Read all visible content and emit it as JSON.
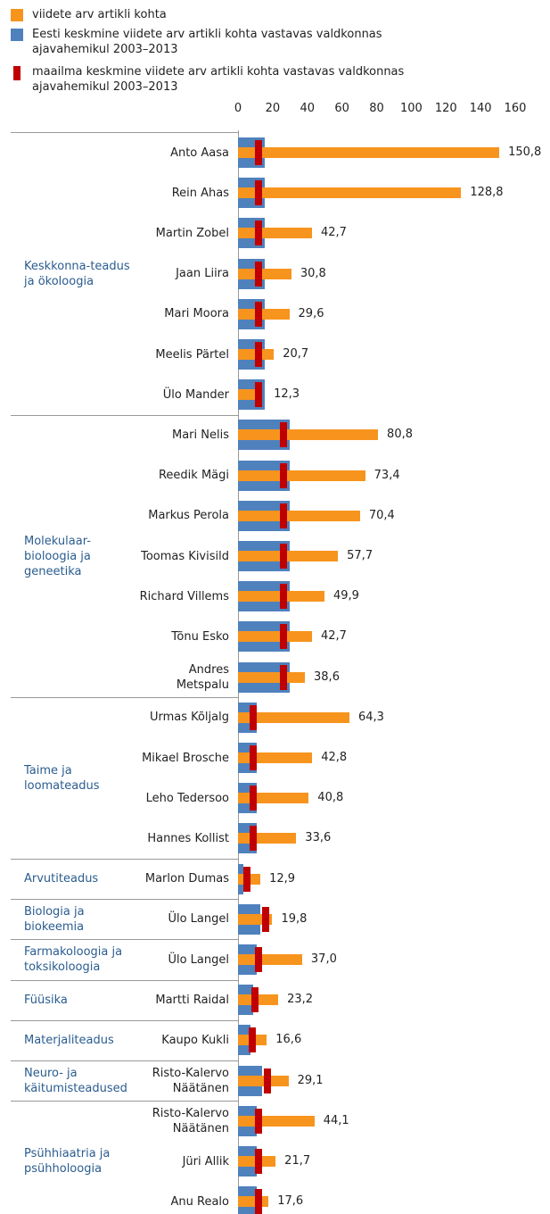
{
  "chart_data": {
    "type": "bar",
    "orientation": "horizontal",
    "xlim": [
      0,
      160
    ],
    "xticks": [
      0,
      20,
      40,
      60,
      80,
      100,
      120,
      140,
      160
    ],
    "groups": [
      {
        "label": "Keskkonna-teadus ja ökoloogia",
        "categories": [
          "Anto Aasa",
          "Rein Ahas",
          "Martin Zobel",
          "Jaan Liira",
          "Mari Moora",
          "Meelis Pärtel",
          "Ülo Mander"
        ]
      },
      {
        "label": "Molekulaar-bioloogia ja geneetika",
        "categories": [
          "Mari Nelis",
          "Reedik Mägi",
          "Markus Perola",
          "Toomas Kivisild",
          "Richard Villems",
          "Tõnu Esko",
          "Andres Metspalu"
        ]
      },
      {
        "label": "Taime ja loomateadus",
        "categories": [
          "Urmas Kõljalg",
          "Mikael Brosche",
          "Leho Tedersoo",
          "Hannes Kollist"
        ]
      },
      {
        "label": "Arvutiteadus",
        "categories": [
          "Marlon Dumas"
        ]
      },
      {
        "label": "Biologia ja biokeemia",
        "categories": [
          "Ülo Langel"
        ]
      },
      {
        "label": "Farmakoloogia ja toksikoloogia",
        "categories": [
          "Ülo Langel"
        ]
      },
      {
        "label": "Füüsika",
        "categories": [
          "Martti Raidal"
        ]
      },
      {
        "label": "Materjaliteadus",
        "categories": [
          "Kaupo Kukli"
        ]
      },
      {
        "label": "Neuro- ja käitumisteadused",
        "categories": [
          "Risto-Kalervo Näätänen"
        ]
      },
      {
        "label": "Psühhiaatria ja psühholoogia",
        "categories": [
          "Risto-Kalervo Näätänen",
          "Jüri Allik",
          "Anu Realo"
        ]
      }
    ],
    "series": [
      {
        "name": "Eesti keskmine viidete arv artikli kohta vastavas valdkonnas ajavahemikul 2003–2013",
        "color": "#4f81bd",
        "marker": "bar",
        "values": [
          15.5,
          15.5,
          15.5,
          15.5,
          15.5,
          15.5,
          15.5,
          30,
          30,
          30,
          30,
          30,
          30,
          30,
          11,
          11,
          11,
          11,
          3,
          13,
          11,
          9,
          7,
          14,
          11,
          11,
          11
        ]
      },
      {
        "name": "viidete arv artikli kohta",
        "color": "#f7941d",
        "marker": "bar",
        "values": [
          150.8,
          128.8,
          42.7,
          30.8,
          29.6,
          20.7,
          12.3,
          80.8,
          73.4,
          70.4,
          57.7,
          49.9,
          42.7,
          38.6,
          64.3,
          42.8,
          40.8,
          33.6,
          12.9,
          19.8,
          37.0,
          23.2,
          16.6,
          29.1,
          44.1,
          21.7,
          17.6
        ],
        "value_labels": [
          "150,8",
          "128,8",
          "42,7",
          "30,8",
          "29,6",
          "20,7",
          "12,3",
          "80,8",
          "73,4",
          "70,4",
          "57,7",
          "49,9",
          "42,7",
          "38,6",
          "64,3",
          "42,8",
          "40,8",
          "33,6",
          "12,9",
          "19,8",
          "37,0",
          "23,2",
          "16,6",
          "29,1",
          "44,1",
          "21,7",
          "17,6"
        ]
      },
      {
        "name": "maailma keskmine viidete arv artikli kohta vastavas valdkonnas ajavahemikul 2003–2013",
        "color": "#c00000",
        "marker": "tick",
        "values": [
          12,
          12,
          12,
          12,
          12,
          12,
          12,
          26,
          26,
          26,
          26,
          26,
          26,
          26,
          9,
          9,
          9,
          9,
          5,
          16,
          12,
          10,
          8,
          17,
          12,
          12,
          12
        ]
      }
    ]
  }
}
